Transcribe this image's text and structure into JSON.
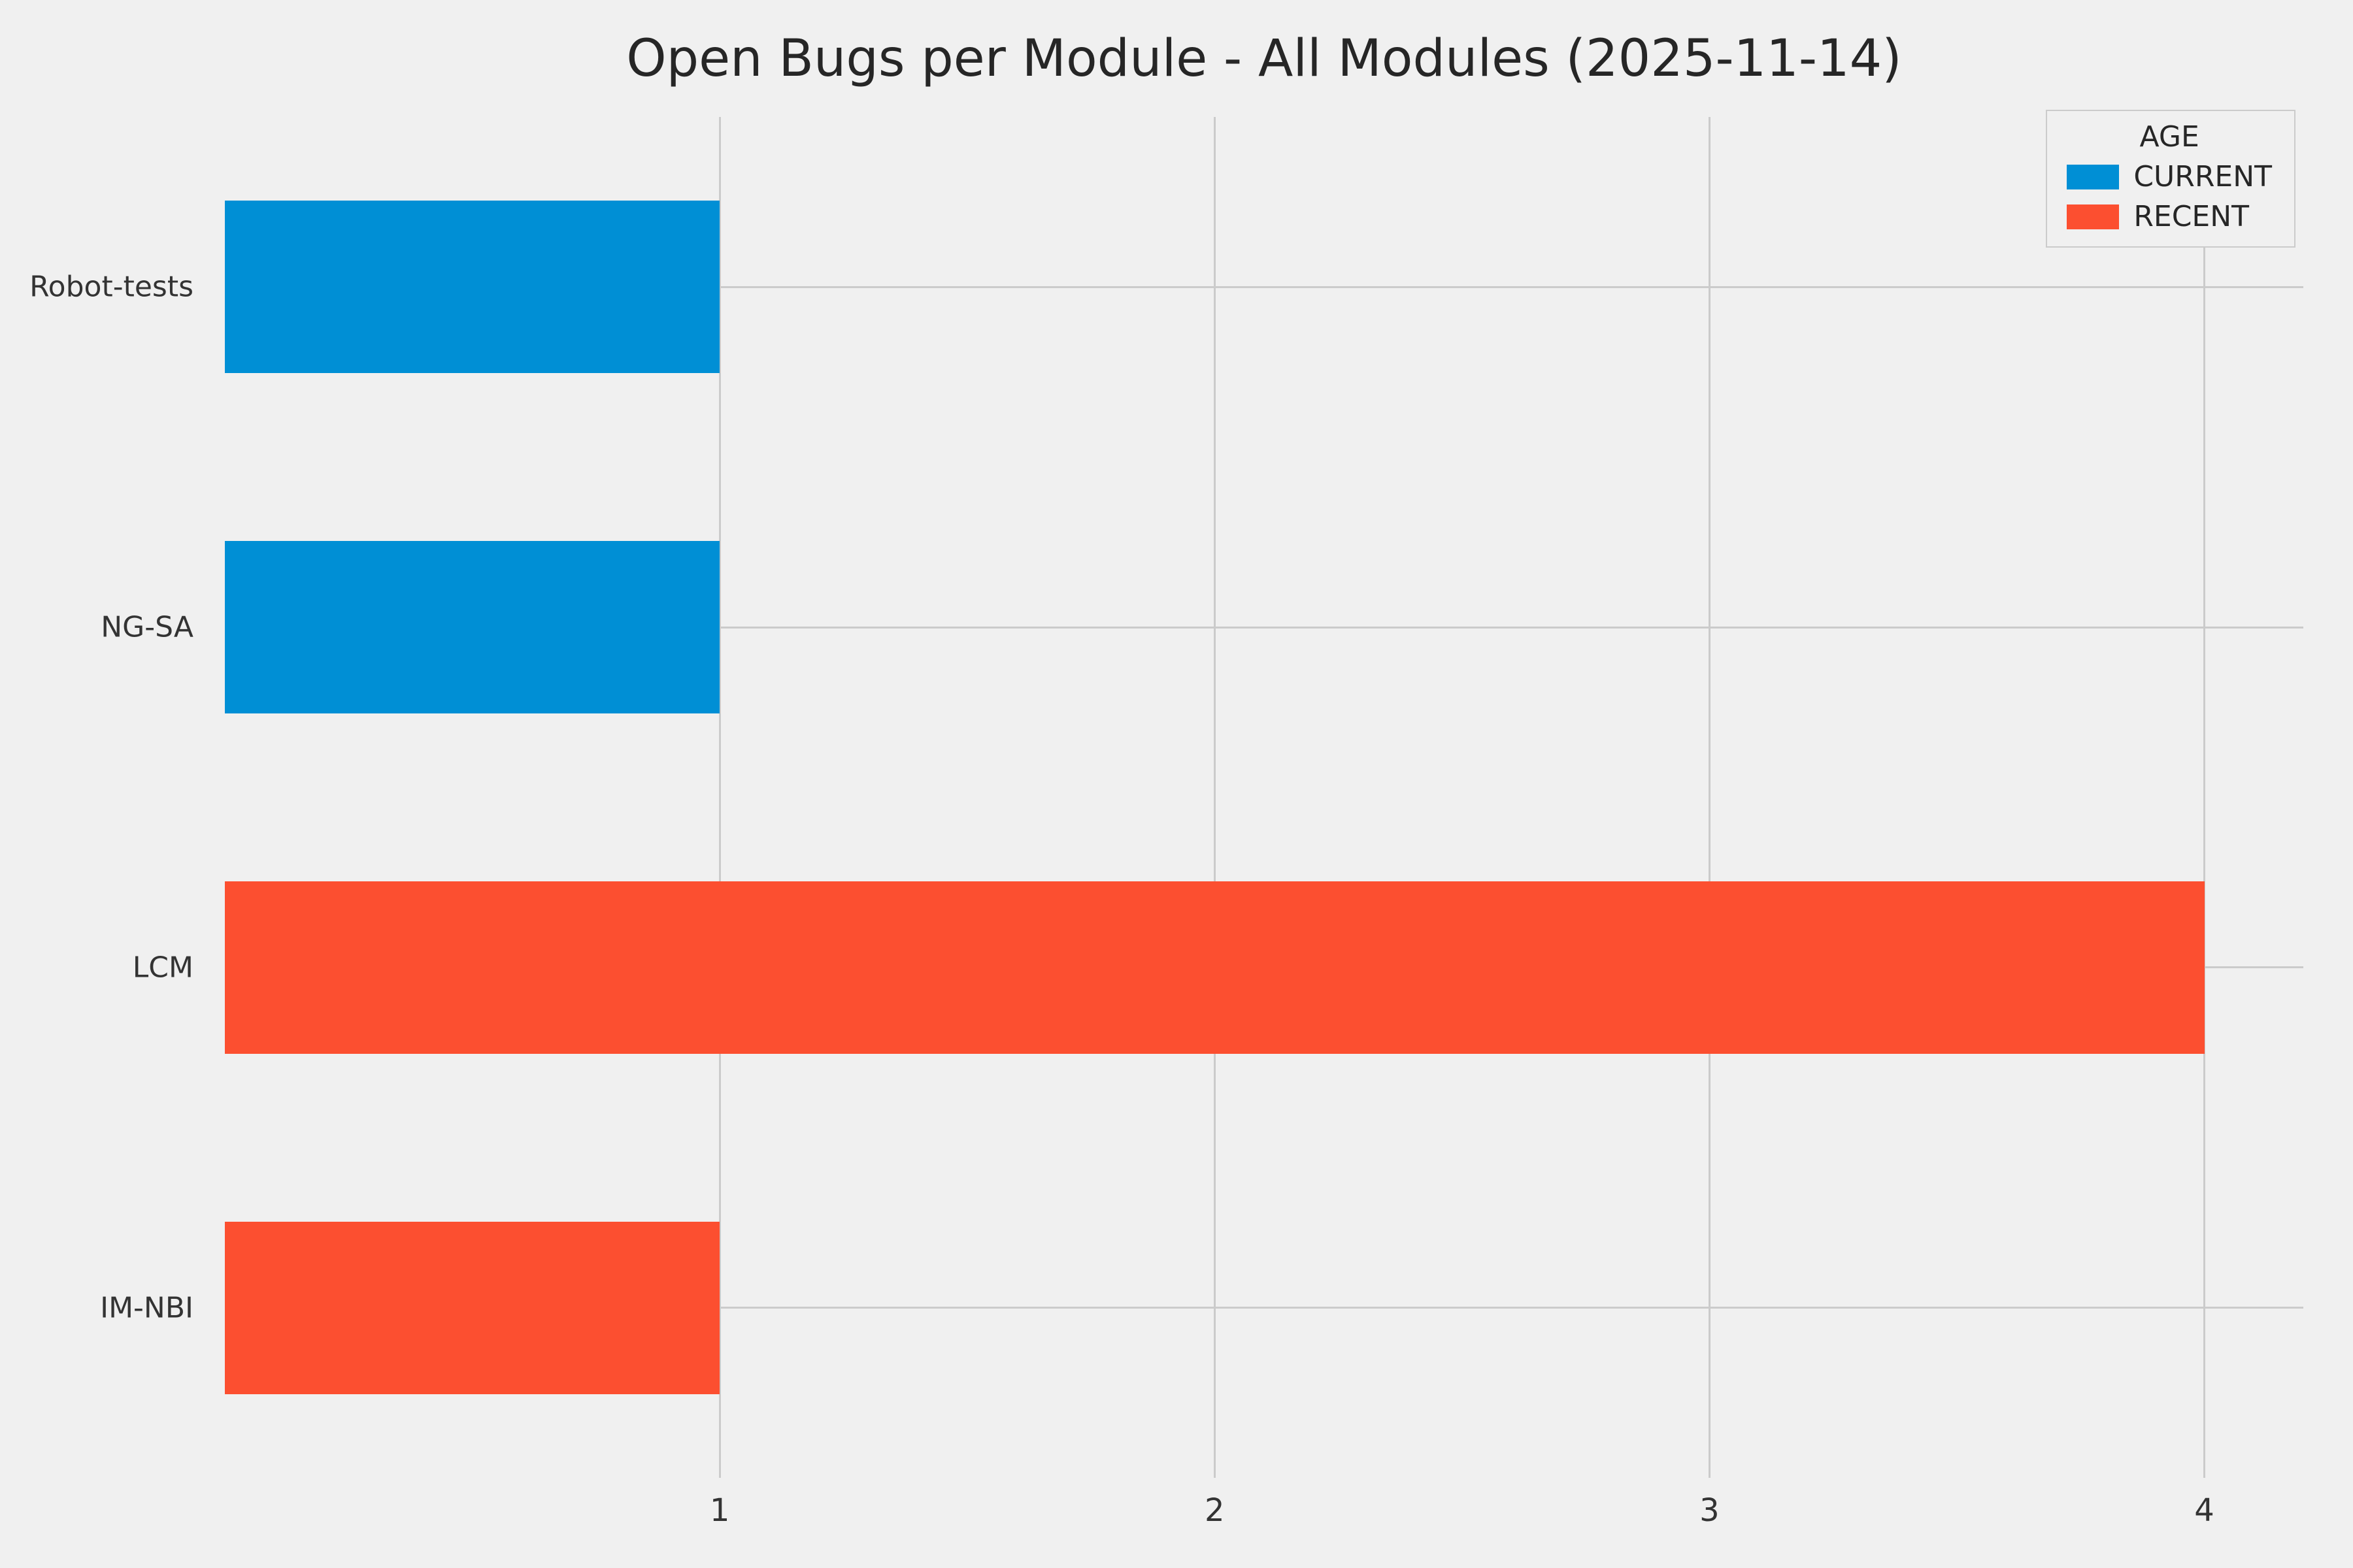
{
  "title": "Open Bugs per Module - All Modules (2025-11-14)",
  "colors": {
    "background": "#f0f0f0",
    "grid": "#cbcbcb",
    "text": "#333333",
    "current": "#008fd5",
    "recent": "#fc4f30"
  },
  "legend": {
    "title": "AGE",
    "entries": [
      {
        "label": "CURRENT",
        "color_key": "current"
      },
      {
        "label": "RECENT",
        "color_key": "recent"
      }
    ]
  },
  "chart_data": {
    "type": "bar",
    "orientation": "horizontal",
    "title": "Open Bugs per Module - All Modules (2025-11-14)",
    "categories": [
      "Robot-tests",
      "NG-SA",
      "LCM",
      "IM-NBI"
    ],
    "series_field": "AGE",
    "bars": [
      {
        "category": "Robot-tests",
        "series": "CURRENT",
        "value": 1
      },
      {
        "category": "NG-SA",
        "series": "CURRENT",
        "value": 1
      },
      {
        "category": "LCM",
        "series": "RECENT",
        "value": 4
      },
      {
        "category": "IM-NBI",
        "series": "RECENT",
        "value": 1
      }
    ],
    "xlabel": "",
    "ylabel": "",
    "xlim": [
      0,
      4.2
    ],
    "xticks": [
      1,
      2,
      3,
      4
    ],
    "grid": true,
    "legend_position": "upper right"
  }
}
